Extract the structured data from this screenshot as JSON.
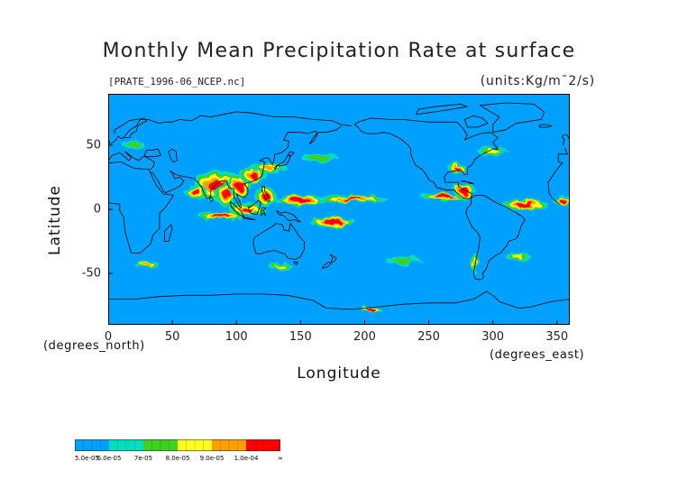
{
  "title": "Monthly Mean Precipitation Rate at surface",
  "source_file": "[PRATE_1996-06_NCEP.nc]",
  "units": "(units:Kg/m¯2/s)",
  "axes": {
    "x_label": "Longitude",
    "y_label": "Latitude",
    "x_unit_note": "(degrees_east)",
    "y_unit_note": "(degrees_north)",
    "x_ticks": [
      "0",
      "50",
      "100",
      "150",
      "200",
      "250",
      "300",
      "350"
    ],
    "y_ticks": [
      "50",
      "0",
      "-50"
    ]
  },
  "map": {
    "lon_range": [
      0,
      360
    ],
    "lat_range": [
      -90,
      90
    ],
    "background_color": "#00a0ff",
    "coastline_color": "#000000",
    "precip_regions": [
      {
        "name": "indian-monsoon",
        "lon": 86,
        "lat": 18,
        "rlon": 20,
        "rlat": 12,
        "level": 6
      },
      {
        "name": "arabian-sea",
        "lon": 68,
        "lat": 14,
        "rlon": 9,
        "rlat": 5,
        "level": 6
      },
      {
        "name": "bay-of-bengal",
        "lon": 92,
        "lat": 12,
        "rlon": 8,
        "rlat": 10,
        "level": 6
      },
      {
        "name": "indochina",
        "lon": 103,
        "lat": 18,
        "rlon": 9,
        "rlat": 9,
        "level": 6
      },
      {
        "name": "south-china",
        "lon": 113,
        "lat": 27,
        "rlon": 11,
        "rlat": 7,
        "level": 5
      },
      {
        "name": "east-asia-front",
        "lon": 126,
        "lat": 32,
        "rlon": 14,
        "rlat": 4,
        "level": 4
      },
      {
        "name": "philippines",
        "lon": 123,
        "lat": 10,
        "rlon": 8,
        "rlat": 7,
        "level": 6
      },
      {
        "name": "maritime-continent",
        "lon": 108,
        "lat": 0,
        "rlon": 14,
        "rlat": 5,
        "level": 5
      },
      {
        "name": "west-pacific-itcz",
        "lon": 150,
        "lat": 7,
        "rlon": 20,
        "rlat": 4,
        "level": 6
      },
      {
        "name": "central-pacific-itcz",
        "lon": 190,
        "lat": 8,
        "rlon": 28,
        "rlat": 3,
        "level": 5
      },
      {
        "name": "spcz",
        "lon": 175,
        "lat": -10,
        "rlon": 18,
        "rlat": 4,
        "level": 6
      },
      {
        "name": "east-indian-ocean",
        "lon": 88,
        "lat": -5,
        "rlon": 18,
        "rlat": 3,
        "level": 6
      },
      {
        "name": "east-pacific-itcz",
        "lon": 262,
        "lat": 10,
        "rlon": 18,
        "rlat": 3,
        "level": 6
      },
      {
        "name": "central-america",
        "lon": 278,
        "lat": 14,
        "rlon": 9,
        "rlat": 6,
        "level": 6
      },
      {
        "name": "gulf-coast",
        "lon": 272,
        "lat": 32,
        "rlon": 7,
        "rlat": 4,
        "level": 5
      },
      {
        "name": "atlantic-itcz",
        "lon": 325,
        "lat": 4,
        "rlon": 18,
        "rlat": 4,
        "level": 6
      },
      {
        "name": "gulf-of-guinea",
        "lon": 354,
        "lat": 7,
        "rlon": 7,
        "rlat": 4,
        "level": 6
      },
      {
        "name": "north-atlantic-storm",
        "lon": 300,
        "lat": 45,
        "rlon": 12,
        "rlat": 3,
        "level": 3
      },
      {
        "name": "north-pacific-storm",
        "lon": 165,
        "lat": 40,
        "rlon": 15,
        "rlat": 3,
        "level": 2
      },
      {
        "name": "southern-ocean-1",
        "lon": 30,
        "lat": -43,
        "rlon": 10,
        "rlat": 3,
        "level": 4
      },
      {
        "name": "southern-ocean-2",
        "lon": 135,
        "lat": -45,
        "rlon": 9,
        "rlat": 3,
        "level": 3
      },
      {
        "name": "southern-ocean-3",
        "lon": 230,
        "lat": -40,
        "rlon": 14,
        "rlat": 3,
        "level": 2
      },
      {
        "name": "chile-coast",
        "lon": 286,
        "lat": -42,
        "rlon": 3,
        "rlat": 8,
        "level": 4
      },
      {
        "name": "south-atlantic",
        "lon": 320,
        "lat": -37,
        "rlon": 10,
        "rlat": 3,
        "level": 3
      },
      {
        "name": "europe",
        "lon": 20,
        "lat": 50,
        "rlon": 9,
        "rlat": 3,
        "level": 2
      },
      {
        "name": "antarctic-coast",
        "lon": 205,
        "lat": -78,
        "rlon": 8,
        "rlat": 2,
        "level": 6
      }
    ]
  },
  "colorbar": {
    "colors": [
      "#00a0ff",
      "#00e0c0",
      "#40d020",
      "#ffff20",
      "#ffa000",
      "#ff0000"
    ],
    "labels": [
      "5.0e-05",
      "6.0e-05",
      "7e-05",
      "8.0e-05",
      "9.0e-05",
      "1.0e-04",
      "∞"
    ]
  }
}
